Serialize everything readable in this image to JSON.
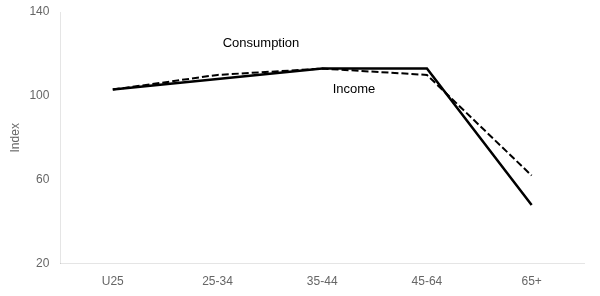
{
  "chart_data": {
    "type": "line",
    "categories": [
      "U25",
      "25-34",
      "35-44",
      "45-64",
      "65+"
    ],
    "series": [
      {
        "name": "Income",
        "color": "#000000",
        "line_style": "solid",
        "values": [
          103,
          108,
          113,
          113,
          48
        ]
      },
      {
        "name": "Consumption",
        "color": "#000000",
        "line_style": "dashed",
        "values": [
          103,
          110,
          113,
          110,
          62
        ]
      }
    ],
    "ylabel": "Index",
    "annotations": [
      {
        "text": "Consumption",
        "x": 1.05,
        "y": 122
      },
      {
        "text": "Income",
        "x": 2.1,
        "y": 100
      }
    ],
    "ylim": [
      20,
      140
    ],
    "yticks": [
      20,
      60,
      100,
      140
    ],
    "grid": false
  }
}
